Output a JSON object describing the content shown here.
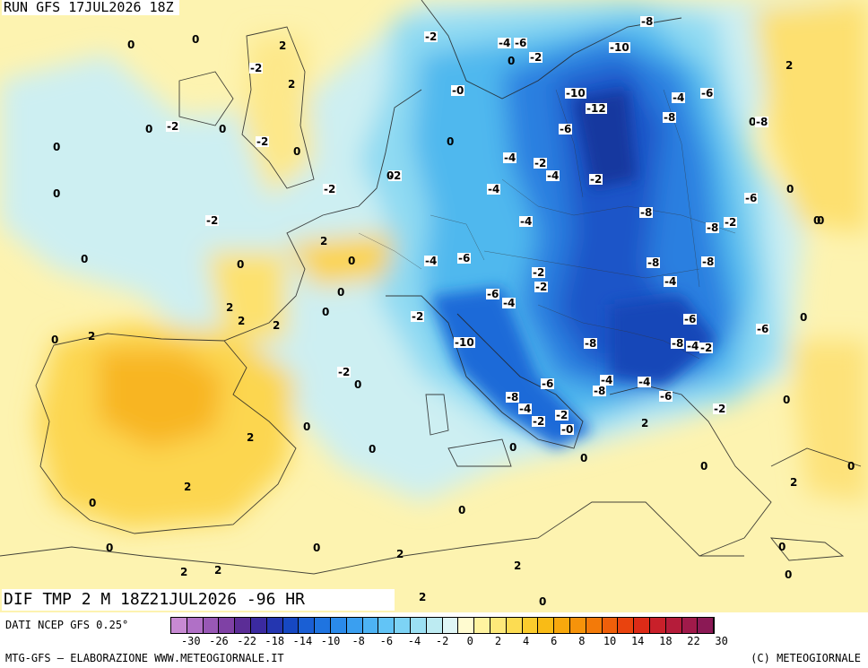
{
  "run_title": "RUN GFS 17JUL2026 18Z",
  "valid_title": "DIF TMP 2 M 18Z21JUL2026 -96 HR",
  "data_source": "DATI NCEP GFS 0.25°",
  "footer_left": "MTG-GFS – ELABORAZIONE WWW.METEOGIORNALE.IT",
  "footer_right": "(C) METEOGIORNALE",
  "colorbar": {
    "colors": [
      "#c78ad2",
      "#b070c6",
      "#9858b5",
      "#7f41a5",
      "#5b2d96",
      "#3b2aa0",
      "#2436b0",
      "#1648c2",
      "#1a5fd4",
      "#1f74e0",
      "#2a8aea",
      "#3a9ff0",
      "#4db3f4",
      "#62c4f6",
      "#7dd3f5",
      "#9be0f3",
      "#bdebf2",
      "#dff6f6",
      "#fffbd0",
      "#fff3a0",
      "#fde97a",
      "#fcdc52",
      "#fbcc2d",
      "#f9bb16",
      "#f8a80d",
      "#f6930a",
      "#f37a09",
      "#ef5f0a",
      "#e9430e",
      "#dd2b17",
      "#c9202a",
      "#b51c3a",
      "#a01a4a",
      "#8b1955"
    ],
    "tick_labels": [
      "-30",
      "-26",
      "-22",
      "-18",
      "-14",
      "-10",
      "-8",
      "-6",
      "-4",
      "-2",
      "0",
      "2",
      "4",
      "6",
      "8",
      "10",
      "14",
      "18",
      "22",
      "30"
    ]
  },
  "contour_labels": [
    "0",
    "0",
    "2",
    "-2",
    "2",
    "0",
    "-2",
    "0",
    "-2",
    "0",
    "-2",
    "0",
    "0",
    "-2",
    "-2",
    "0",
    "2",
    "0",
    "0",
    "0",
    "2",
    "2",
    "2",
    "0",
    "2",
    "-2",
    "0",
    "2",
    "0",
    "0",
    "0",
    "2",
    "2",
    "2",
    "2",
    "0",
    "0",
    "0",
    "0",
    "-2",
    "-4",
    "-6",
    "0",
    "-2",
    "-8",
    "-10",
    "-0",
    "-10",
    "-12",
    "-6",
    "-4",
    "-6",
    "-8",
    "-8",
    "0",
    "-4",
    "-2",
    "-4",
    "-4",
    "0",
    "-2",
    "-8",
    "-8",
    "-6",
    "-2",
    "-4",
    "-6",
    "-4",
    "-2",
    "-8",
    "-8",
    "-2",
    "-4",
    "-6",
    "-4",
    "-2",
    "-6",
    "-8",
    "-10",
    "-6",
    "-8",
    "-4",
    "-2",
    "-4",
    "-8",
    "-4",
    "-6",
    "-8",
    "-6",
    "-2",
    "-4",
    "-2",
    "-0",
    "-2",
    "0",
    "0",
    "0",
    "0",
    "2",
    "0",
    "0",
    "2",
    "0",
    "0",
    "2",
    "2",
    "0",
    "0",
    "2",
    "0",
    "0",
    "0"
  ]
}
